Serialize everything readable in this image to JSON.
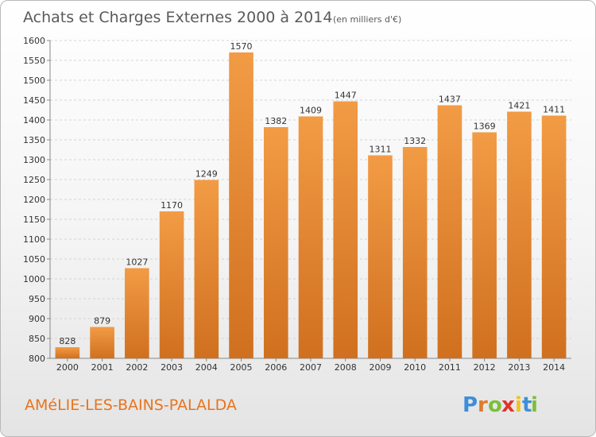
{
  "title": "Achats et Charges Externes 2000 à 2014",
  "unit": "(en milliers d'€)",
  "commune": "AMéLIE-LES-BAINS-PALALDA",
  "brand": {
    "letters": [
      "P",
      "r",
      "o",
      "x",
      "i",
      "t",
      "i"
    ],
    "colors": [
      "#3f8fd8",
      "#e07b2a",
      "#7cbf3a",
      "#e0342a",
      "#f2c21b",
      "#3f8fd8",
      "#7cbf3a"
    ]
  },
  "colors": {
    "bar": "#f29b45",
    "bar_dark": "#d0701f",
    "grid": "#d4d4d4"
  },
  "chart_data": {
    "type": "bar",
    "title": "Achats et Charges Externes 2000 à 2014",
    "subtitle": "(en milliers d'€)",
    "categories": [
      "2000",
      "2001",
      "2002",
      "2003",
      "2004",
      "2005",
      "2006",
      "2007",
      "2008",
      "2009",
      "2010",
      "2011",
      "2012",
      "2013",
      "2014"
    ],
    "values": [
      828,
      879,
      1027,
      1170,
      1249,
      1570,
      1382,
      1409,
      1447,
      1311,
      1332,
      1437,
      1369,
      1421,
      1411
    ],
    "ylim": [
      800,
      1600
    ],
    "yticks": [
      800,
      850,
      900,
      950,
      1000,
      1050,
      1100,
      1150,
      1200,
      1250,
      1300,
      1350,
      1400,
      1450,
      1500,
      1550,
      1600
    ],
    "grid": true,
    "xlabel": "",
    "ylabel": ""
  }
}
